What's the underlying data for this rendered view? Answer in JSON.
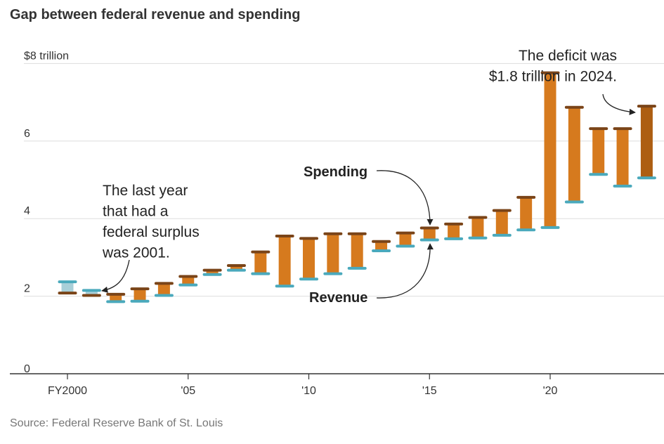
{
  "title": "Gap between federal revenue and spending",
  "source": "Source: Federal Reserve Bank of St. Louis",
  "colors": {
    "bar": "#d67a1e",
    "bar_latest": "#ad5e12",
    "spending_cap": "#7a4418",
    "revenue_cap": "#4aa9bc",
    "surplus_fill": "#a8cfd8",
    "grid": "#dddddd",
    "axis": "#333333"
  },
  "chart_data": {
    "type": "bar",
    "xlabel": "",
    "ylabel": "",
    "ylim": [
      0,
      8
    ],
    "yticks": [
      {
        "value": 0,
        "label": "0"
      },
      {
        "value": 2,
        "label": "2"
      },
      {
        "value": 4,
        "label": "4"
      },
      {
        "value": 6,
        "label": "6"
      },
      {
        "value": 8,
        "label": "$8 trillion"
      }
    ],
    "xticks": [
      {
        "value": 2000,
        "label": "FY2000"
      },
      {
        "value": 2005,
        "label": "'05"
      },
      {
        "value": 2010,
        "label": "'10"
      },
      {
        "value": 2015,
        "label": "'15"
      },
      {
        "value": 2020,
        "label": "'20"
      }
    ],
    "years": [
      2000,
      2001,
      2002,
      2003,
      2004,
      2005,
      2006,
      2007,
      2008,
      2009,
      2010,
      2011,
      2012,
      2013,
      2014,
      2015,
      2016,
      2017,
      2018,
      2019,
      2020,
      2021,
      2022,
      2023,
      2024
    ],
    "series": [
      {
        "name": "Spending",
        "values": [
          2.08,
          2.02,
          2.05,
          2.19,
          2.33,
          2.51,
          2.67,
          2.79,
          3.14,
          3.55,
          3.49,
          3.61,
          3.61,
          3.41,
          3.63,
          3.76,
          3.86,
          4.03,
          4.21,
          4.55,
          7.76,
          6.87,
          6.32,
          6.32,
          6.9
        ]
      },
      {
        "name": "Revenue",
        "values": [
          2.37,
          2.15,
          1.86,
          1.87,
          2.02,
          2.29,
          2.56,
          2.67,
          2.58,
          2.26,
          2.44,
          2.58,
          2.72,
          3.17,
          3.29,
          3.45,
          3.48,
          3.5,
          3.57,
          3.71,
          3.77,
          4.43,
          5.14,
          4.84,
          5.05
        ]
      }
    ],
    "annotations": [
      {
        "text": [
          "The last year",
          "that had a",
          "federal surplus",
          "was 2001."
        ]
      },
      {
        "text": [
          "The deficit was",
          "$1.8 trillion in 2024."
        ]
      },
      {
        "text": [
          "Spending"
        ]
      },
      {
        "text": [
          "Revenue"
        ]
      }
    ]
  }
}
